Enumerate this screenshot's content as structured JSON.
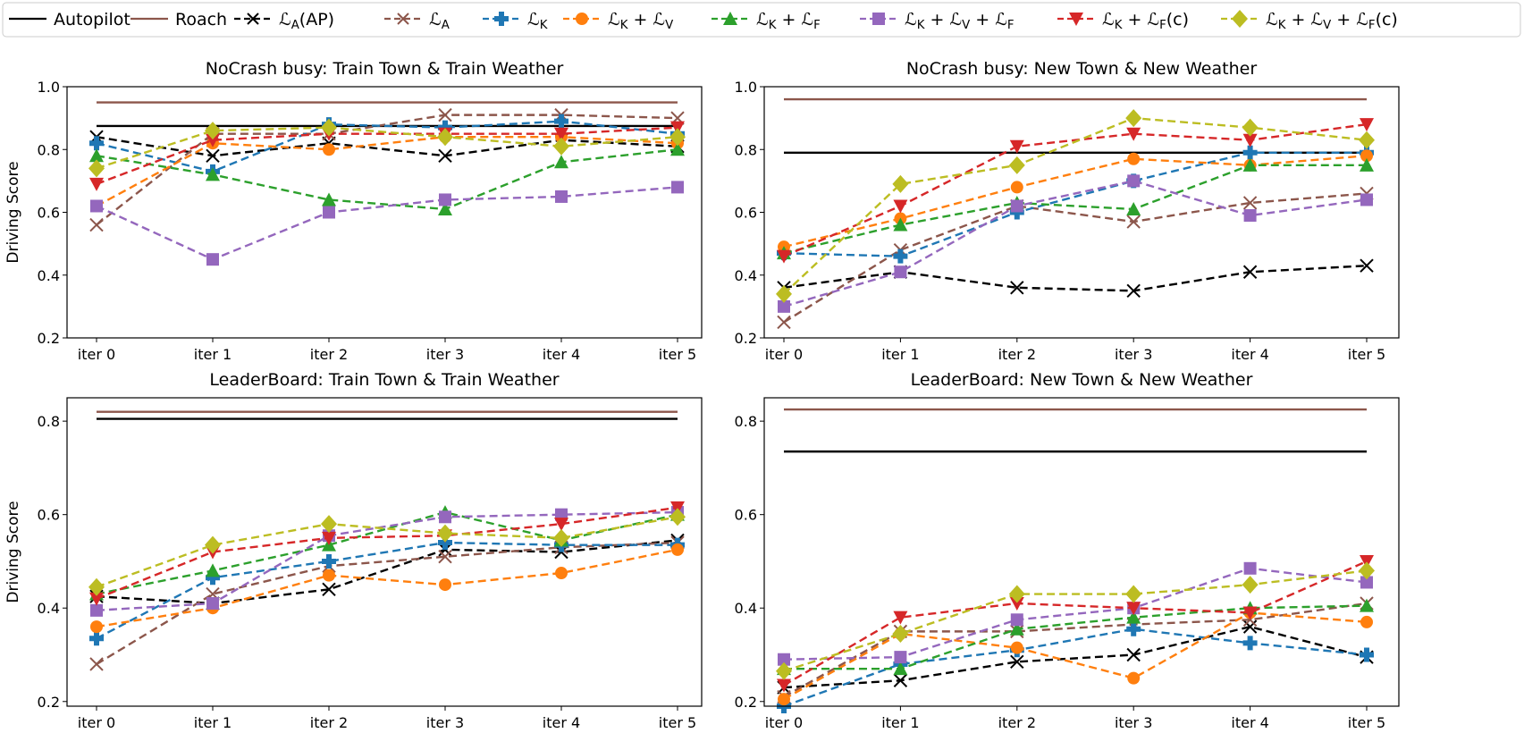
{
  "chart_data": {
    "legend": {
      "placement": "top",
      "entries": [
        {
          "key": "autopilot",
          "label": "Autopilot",
          "color": "#000000",
          "style": "solid",
          "marker": "none"
        },
        {
          "key": "roach",
          "label": "Roach",
          "color": "#8c564b",
          "style": "solid",
          "marker": "none"
        },
        {
          "key": "la_ap",
          "label": "ℒ_A(AP)",
          "color": "#000000",
          "style": "dashed",
          "marker": "x"
        },
        {
          "key": "la",
          "label": "ℒ_A",
          "color": "#8c564b",
          "style": "dashed",
          "marker": "x"
        },
        {
          "key": "lk",
          "label": "ℒ_K",
          "color": "#1f77b4",
          "style": "dashed",
          "marker": "plus"
        },
        {
          "key": "kv",
          "label": "ℒ_K + ℒ_V",
          "color": "#ff7f0e",
          "style": "dashed",
          "marker": "circle"
        },
        {
          "key": "kf",
          "label": "ℒ_K + ℒ_F",
          "color": "#2ca02c",
          "style": "dashed",
          "marker": "triangle-up"
        },
        {
          "key": "kvf",
          "label": "ℒ_K + ℒ_V + ℒ_F",
          "color": "#9467bd",
          "style": "dashed",
          "marker": "square"
        },
        {
          "key": "kfc",
          "label": "ℒ_K + ℒ_F(c)",
          "color": "#d62728",
          "style": "dashed",
          "marker": "triangle-down"
        },
        {
          "key": "kvfc",
          "label": "ℒ_K + ℒ_V + ℒ_F(c)",
          "color": "#bcbd22",
          "style": "dashed",
          "marker": "diamond"
        }
      ]
    },
    "charts": [
      {
        "type": "line",
        "title": "NoCrash busy: Train Town & Train Weather",
        "ylabel": "Driving Score",
        "xlabel": "",
        "categories": [
          "iter 0",
          "iter 1",
          "iter 2",
          "iter 3",
          "iter 4",
          "iter 5"
        ],
        "ylim": [
          0.2,
          1.0
        ],
        "yticks": [
          "0.2",
          "0.4",
          "0.6",
          "0.8",
          "1.0"
        ],
        "grid": false,
        "series": {
          "autopilot": [
            0.875,
            0.875,
            0.875,
            0.875,
            0.875,
            0.875
          ],
          "roach": [
            0.95,
            0.95,
            0.95,
            0.95,
            0.95,
            0.95
          ],
          "la_ap": [
            0.84,
            0.78,
            0.82,
            0.78,
            0.83,
            0.81
          ],
          "la": [
            0.56,
            0.85,
            0.85,
            0.91,
            0.91,
            0.9
          ],
          "lk": [
            0.82,
            0.73,
            0.88,
            0.87,
            0.89,
            0.85
          ],
          "kv": [
            0.62,
            0.82,
            0.8,
            0.84,
            0.84,
            0.82
          ],
          "kf": [
            0.78,
            0.72,
            0.64,
            0.61,
            0.76,
            0.8
          ],
          "kvf": [
            0.62,
            0.45,
            0.6,
            0.64,
            0.65,
            0.68
          ],
          "kfc": [
            0.69,
            0.83,
            0.85,
            0.85,
            0.85,
            0.87
          ],
          "kvfc": [
            0.74,
            0.86,
            0.87,
            0.84,
            0.81,
            0.84
          ]
        }
      },
      {
        "type": "line",
        "title": "NoCrash busy: New Town & New Weather",
        "ylabel": "",
        "xlabel": "",
        "categories": [
          "iter 0",
          "iter 1",
          "iter 2",
          "iter 3",
          "iter 4",
          "iter 5"
        ],
        "ylim": [
          0.2,
          1.0
        ],
        "yticks": [
          "0.2",
          "0.4",
          "0.6",
          "0.8",
          "1.0"
        ],
        "grid": false,
        "series": {
          "autopilot": [
            0.79,
            0.79,
            0.79,
            0.79,
            0.79,
            0.79
          ],
          "roach": [
            0.96,
            0.96,
            0.96,
            0.96,
            0.96,
            0.96
          ],
          "la_ap": [
            0.36,
            0.41,
            0.36,
            0.35,
            0.41,
            0.43
          ],
          "la": [
            0.25,
            0.48,
            0.62,
            0.57,
            0.63,
            0.66
          ],
          "lk": [
            0.47,
            0.46,
            0.6,
            0.7,
            0.79,
            0.79
          ],
          "kv": [
            0.49,
            0.58,
            0.68,
            0.77,
            0.75,
            0.78
          ],
          "kf": [
            0.47,
            0.56,
            0.63,
            0.61,
            0.75,
            0.75
          ],
          "kvf": [
            0.3,
            0.41,
            0.62,
            0.7,
            0.59,
            0.64
          ],
          "kfc": [
            0.46,
            0.62,
            0.81,
            0.85,
            0.83,
            0.88
          ],
          "kvfc": [
            0.34,
            0.69,
            0.75,
            0.9,
            0.87,
            0.83
          ]
        }
      },
      {
        "type": "line",
        "title": "LeaderBoard: Train Town & Train Weather",
        "ylabel": "Driving Score",
        "xlabel": "",
        "categories": [
          "iter 0",
          "iter 1",
          "iter 2",
          "iter 3",
          "iter 4",
          "iter 5"
        ],
        "ylim": [
          0.19,
          0.85
        ],
        "yticks": [
          "0.2",
          "0.4",
          "0.6",
          "0.8"
        ],
        "grid": false,
        "series": {
          "autopilot": [
            0.805,
            0.805,
            0.805,
            0.805,
            0.805,
            0.805
          ],
          "roach": [
            0.82,
            0.82,
            0.82,
            0.82,
            0.82,
            0.82
          ],
          "la_ap": [
            0.425,
            0.41,
            0.44,
            0.525,
            0.52,
            0.545
          ],
          "la": [
            0.28,
            0.43,
            0.49,
            0.51,
            0.53,
            0.54
          ],
          "lk": [
            0.335,
            0.465,
            0.5,
            0.54,
            0.535,
            0.535
          ],
          "kv": [
            0.36,
            0.4,
            0.47,
            0.45,
            0.475,
            0.525
          ],
          "kf": [
            0.43,
            0.48,
            0.535,
            0.605,
            0.545,
            0.6
          ],
          "kvf": [
            0.395,
            0.41,
            0.555,
            0.595,
            0.6,
            0.605
          ],
          "kfc": [
            0.42,
            0.52,
            0.55,
            0.555,
            0.58,
            0.615
          ],
          "kvfc": [
            0.445,
            0.535,
            0.58,
            0.56,
            0.55,
            0.595
          ]
        }
      },
      {
        "type": "line",
        "title": "LeaderBoard: New Town & New Weather",
        "ylabel": "",
        "xlabel": "",
        "categories": [
          "iter 0",
          "iter 1",
          "iter 2",
          "iter 3",
          "iter 4",
          "iter 5"
        ],
        "ylim": [
          0.19,
          0.85
        ],
        "yticks": [
          "0.2",
          "0.4",
          "0.6",
          "0.8"
        ],
        "grid": false,
        "series": {
          "autopilot": [
            0.735,
            0.735,
            0.735,
            0.735,
            0.735,
            0.735
          ],
          "roach": [
            0.825,
            0.825,
            0.825,
            0.825,
            0.825,
            0.825
          ],
          "la_ap": [
            0.23,
            0.245,
            0.285,
            0.3,
            0.36,
            0.295
          ],
          "la": [
            0.21,
            0.35,
            0.35,
            0.365,
            0.375,
            0.41
          ],
          "lk": [
            0.19,
            0.28,
            0.31,
            0.355,
            0.325,
            0.3
          ],
          "kv": [
            0.205,
            0.345,
            0.315,
            0.25,
            0.39,
            0.37
          ],
          "kf": [
            0.27,
            0.27,
            0.355,
            0.38,
            0.4,
            0.405
          ],
          "kvf": [
            0.29,
            0.295,
            0.375,
            0.4,
            0.485,
            0.455
          ],
          "kfc": [
            0.235,
            0.38,
            0.41,
            0.4,
            0.39,
            0.5
          ],
          "kvfc": [
            0.265,
            0.345,
            0.43,
            0.43,
            0.45,
            0.48
          ]
        }
      }
    ]
  }
}
